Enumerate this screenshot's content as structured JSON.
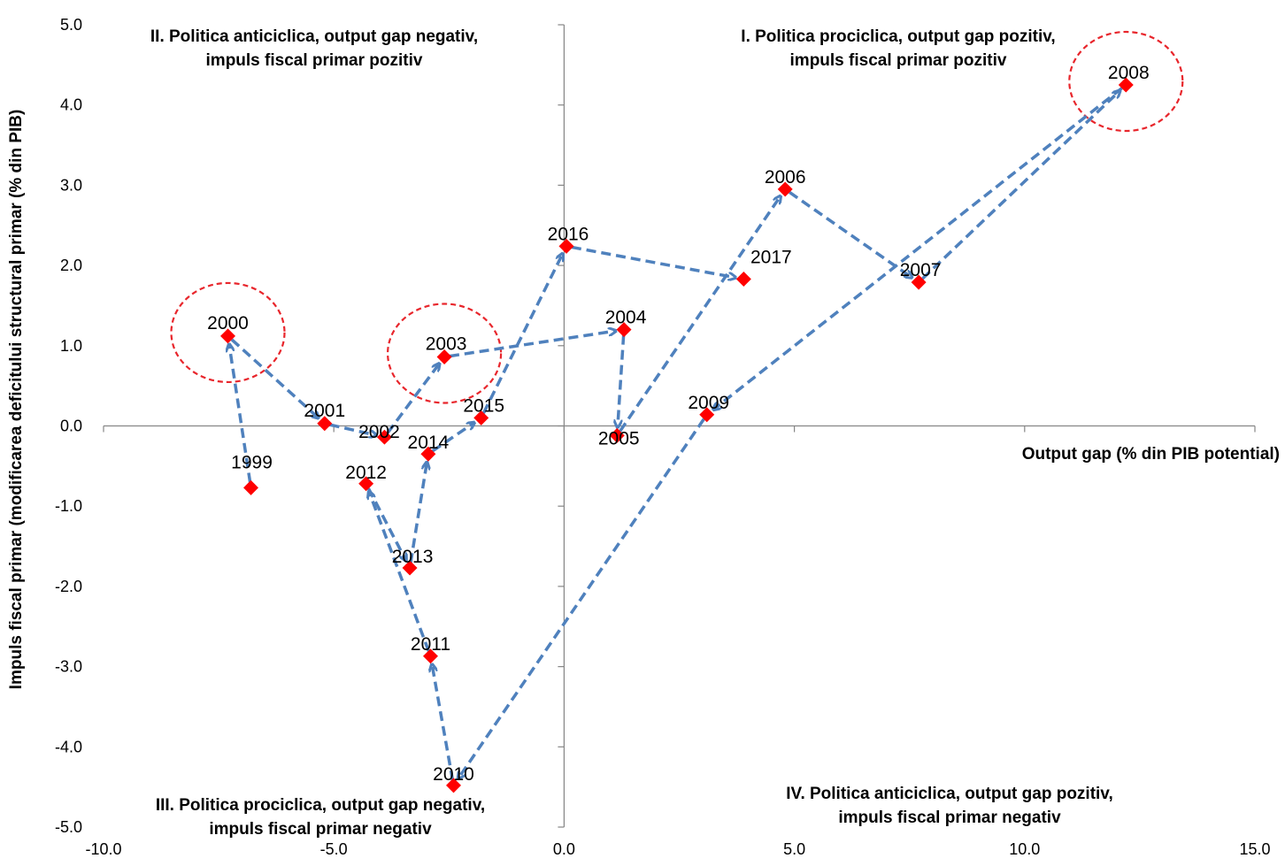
{
  "chart_data": {
    "type": "scatter",
    "xlabel": "Output gap (% din PIB potential)",
    "ylabel": "Impuls fiscal primar (modificarea deficitului structural primar (% din PIB)",
    "xlim": [
      -10,
      15
    ],
    "ylim": [
      -5,
      5
    ],
    "x_ticks": [
      "-10.0",
      "-5.0",
      "0.0",
      "5.0",
      "10.0",
      "15.0"
    ],
    "y_ticks": [
      "5.0",
      "4.0",
      "3.0",
      "2.0",
      "1.0",
      "0.0",
      "-1.0",
      "-2.0",
      "-3.0",
      "-4.0",
      "-5.0"
    ],
    "grid": false,
    "marker_color": "#ff0000",
    "arrow_color": "#4f81bd",
    "circle_color": "#e8262c",
    "points": [
      {
        "label": "1999",
        "x": -6.8,
        "y": -0.77
      },
      {
        "label": "2000",
        "x": -7.3,
        "y": 1.12
      },
      {
        "label": "2001",
        "x": -5.2,
        "y": 0.03
      },
      {
        "label": "2002",
        "x": -3.9,
        "y": -0.14
      },
      {
        "label": "2003",
        "x": -2.6,
        "y": 0.86
      },
      {
        "label": "2004",
        "x": 1.3,
        "y": 1.2
      },
      {
        "label": "2005",
        "x": 1.15,
        "y": -0.12
      },
      {
        "label": "2006",
        "x": 4.8,
        "y": 2.95
      },
      {
        "label": "2007",
        "x": 7.7,
        "y": 1.79
      },
      {
        "label": "2008",
        "x": 12.2,
        "y": 4.25
      },
      {
        "label": "2009",
        "x": 3.1,
        "y": 0.14
      },
      {
        "label": "2010",
        "x": -2.4,
        "y": -4.48
      },
      {
        "label": "2011",
        "x": -2.9,
        "y": -2.87
      },
      {
        "label": "2012",
        "x": -4.3,
        "y": -0.72
      },
      {
        "label": "2013",
        "x": -3.35,
        "y": -1.77
      },
      {
        "label": "2014",
        "x": -2.95,
        "y": -0.35
      },
      {
        "label": "2015",
        "x": -1.8,
        "y": 0.1
      },
      {
        "label": "2016",
        "x": 0.05,
        "y": 2.24
      },
      {
        "label": "2017",
        "x": 3.9,
        "y": 1.83
      }
    ],
    "highlighted": [
      "2000",
      "2003",
      "2008"
    ],
    "quadrant_labels": [
      {
        "id": "I",
        "lines": [
          "I. Politica prociclica, output gap pozitiv,",
          "impuls fiscal primar pozitiv"
        ]
      },
      {
        "id": "II",
        "lines": [
          "II. Politica anticiclica, output gap negativ,",
          "impuls fiscal primar pozitiv"
        ]
      },
      {
        "id": "III",
        "lines": [
          "III. Politica prociclica, output gap negativ,",
          "impuls fiscal primar negativ"
        ]
      },
      {
        "id": "IV",
        "lines": [
          "IV. Politica anticiclica, output gap pozitiv,",
          "impuls fiscal primar negativ"
        ]
      }
    ]
  }
}
